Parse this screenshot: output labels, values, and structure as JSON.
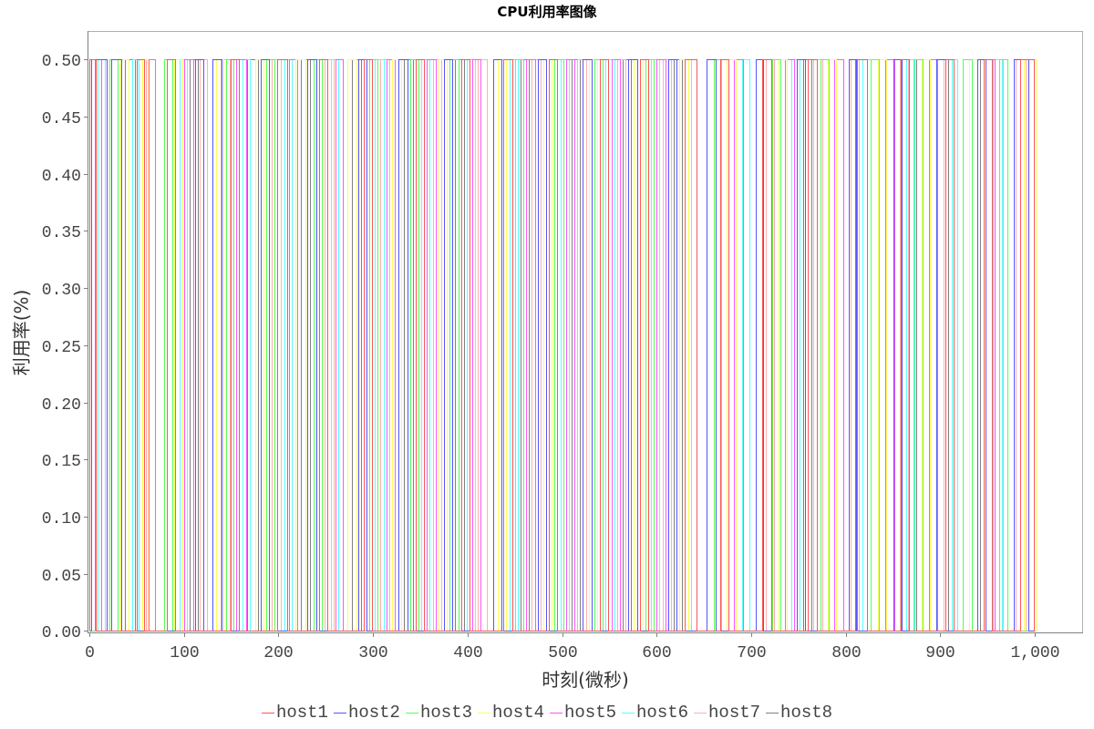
{
  "chart_data": {
    "type": "line",
    "step": true,
    "title": "CPU利用率图像",
    "xlabel": "时刻(微秒)",
    "ylabel": "利用率(%)",
    "xlim": [
      -2,
      1051
    ],
    "ylim": [
      -0.002,
      0.525
    ],
    "x_ticks": [
      0,
      100,
      200,
      300,
      400,
      500,
      600,
      700,
      800,
      900,
      1000
    ],
    "x_tick_labels": [
      "0",
      "100",
      "200",
      "300",
      "400",
      "500",
      "600",
      "700",
      "800",
      "900",
      "1,000"
    ],
    "y_ticks": [
      0,
      0.05,
      0.1,
      0.15,
      0.2,
      0.25,
      0.3,
      0.35,
      0.4,
      0.45,
      0.5
    ],
    "y_tick_labels": [
      "0.00",
      "0.05",
      "0.10",
      "0.15",
      "0.20",
      "0.25",
      "0.30",
      "0.35",
      "0.40",
      "0.45",
      "0.50"
    ],
    "grid": false,
    "legend_position": "bottom",
    "x_data_range": [
      0,
      1000
    ],
    "levels": {
      "low": 0,
      "high": 0.5
    },
    "series": [
      {
        "name": "host1",
        "color": "#ff5555",
        "high_intervals": [
          [
            0,
            7
          ],
          [
            50,
            58
          ],
          [
            82,
            91
          ],
          [
            149,
            158
          ],
          [
            199,
            209
          ],
          [
            243,
            252
          ],
          [
            290,
            299
          ],
          [
            345,
            354
          ],
          [
            393,
            402
          ],
          [
            438,
            447
          ],
          [
            486,
            495
          ],
          [
            540,
            549
          ],
          [
            582,
            591
          ],
          [
            630,
            642
          ],
          [
            667,
            676
          ],
          [
            712,
            721
          ],
          [
            760,
            769
          ],
          [
            812,
            822
          ],
          [
            858,
            867
          ],
          [
            905,
            914
          ],
          [
            946,
            955
          ],
          [
            984,
            999
          ]
        ]
      },
      {
        "name": "host2",
        "color": "#5555ff",
        "high_intervals": [
          [
            2,
            18
          ],
          [
            23,
            34
          ],
          [
            112,
            120
          ],
          [
            130,
            140
          ],
          [
            181,
            190
          ],
          [
            230,
            240
          ],
          [
            284,
            293
          ],
          [
            327,
            336
          ],
          [
            375,
            384
          ],
          [
            427,
            436
          ],
          [
            474,
            483
          ],
          [
            522,
            531
          ],
          [
            570,
            579
          ],
          [
            612,
            621
          ],
          [
            653,
            662
          ],
          [
            705,
            713
          ],
          [
            748,
            757
          ],
          [
            803,
            811
          ],
          [
            850,
            859
          ],
          [
            896,
            905
          ],
          [
            939,
            948
          ],
          [
            978,
            993
          ]
        ]
      },
      {
        "name": "host3",
        "color": "#55ff55",
        "high_intervals": [
          [
            21,
            30
          ],
          [
            79,
            88
          ],
          [
            145,
            152
          ],
          [
            187,
            196
          ],
          [
            237,
            246
          ],
          [
            296,
            305
          ],
          [
            339,
            348
          ],
          [
            381,
            390
          ],
          [
            450,
            459
          ],
          [
            492,
            501
          ],
          [
            534,
            543
          ],
          [
            588,
            597
          ],
          [
            660,
            668
          ],
          [
            722,
            731
          ],
          [
            773,
            782
          ],
          [
            826,
            835
          ],
          [
            872,
            881
          ],
          [
            924,
            933
          ],
          [
            962,
            971
          ]
        ]
      },
      {
        "name": "host4",
        "color": "#ffff55",
        "high_intervals": [
          [
            33,
            41
          ],
          [
            56,
            62
          ],
          [
            90,
            98
          ],
          [
            134,
            142
          ],
          [
            175,
            184
          ],
          [
            218,
            228
          ],
          [
            273,
            282
          ],
          [
            320,
            330
          ],
          [
            369,
            378
          ],
          [
            432,
            441
          ],
          [
            480,
            489
          ],
          [
            528,
            537
          ],
          [
            576,
            585
          ],
          [
            624,
            633
          ],
          [
            674,
            684
          ],
          [
            729,
            738
          ],
          [
            781,
            790
          ],
          [
            834,
            843
          ],
          [
            880,
            889
          ],
          [
            930,
            939
          ],
          [
            988,
            1002
          ]
        ]
      },
      {
        "name": "host5",
        "color": "#ff55ff",
        "high_intervals": [
          [
            6,
            12
          ],
          [
            63,
            69
          ],
          [
            100,
            110
          ],
          [
            155,
            166
          ],
          [
            211,
            220
          ],
          [
            260,
            268
          ],
          [
            314,
            323
          ],
          [
            357,
            366
          ],
          [
            405,
            414
          ],
          [
            462,
            471
          ],
          [
            504,
            513
          ],
          [
            552,
            561
          ],
          [
            600,
            609
          ],
          [
            682,
            691
          ],
          [
            736,
            745
          ],
          [
            788,
            797
          ],
          [
            842,
            851
          ],
          [
            888,
            897
          ],
          [
            948,
            957
          ]
        ]
      },
      {
        "name": "host6",
        "color": "#55ffff",
        "high_intervals": [
          [
            9,
            16
          ],
          [
            45,
            52
          ],
          [
            95,
            103
          ],
          [
            162,
            170
          ],
          [
            206,
            214
          ],
          [
            255,
            263
          ],
          [
            302,
            311
          ],
          [
            351,
            360
          ],
          [
            399,
            408
          ],
          [
            444,
            453
          ],
          [
            498,
            507
          ],
          [
            546,
            555
          ],
          [
            594,
            603
          ],
          [
            690,
            698
          ],
          [
            742,
            751
          ],
          [
            818,
            826
          ],
          [
            864,
            873
          ],
          [
            912,
            918
          ],
          [
            956,
            965
          ]
        ]
      },
      {
        "name": "host7",
        "color": "#ffafaf",
        "high_intervals": [
          [
            60,
            69
          ],
          [
            117,
            124
          ],
          [
            139,
            148
          ],
          [
            193,
            202
          ],
          [
            249,
            258
          ],
          [
            308,
            317
          ],
          [
            363,
            372
          ],
          [
            411,
            420
          ],
          [
            468,
            477
          ],
          [
            516,
            525
          ],
          [
            558,
            567
          ],
          [
            606,
            615
          ],
          [
            636,
            642
          ],
          [
            715,
            724
          ],
          [
            766,
            775
          ],
          [
            805,
            814
          ],
          [
            857,
            866
          ],
          [
            903,
            912
          ],
          [
            924,
            930
          ],
          [
            966,
            971
          ],
          [
            980,
            990
          ]
        ]
      },
      {
        "name": "host8",
        "color": "#808080",
        "high_intervals": [
          [
            38,
            48
          ],
          [
            106,
            115
          ],
          [
            167,
            178
          ],
          [
            224,
            233
          ],
          [
            278,
            287
          ],
          [
            333,
            342
          ],
          [
            387,
            396
          ],
          [
            456,
            465
          ],
          [
            510,
            519
          ],
          [
            564,
            573
          ],
          [
            618,
            627
          ],
          [
            653,
            660
          ],
          [
            705,
            712
          ],
          [
            755,
            764
          ],
          [
            790,
            797
          ],
          [
            810,
            818
          ],
          [
            866,
            875
          ],
          [
            908,
            918
          ],
          [
            933,
            942
          ]
        ]
      }
    ]
  }
}
